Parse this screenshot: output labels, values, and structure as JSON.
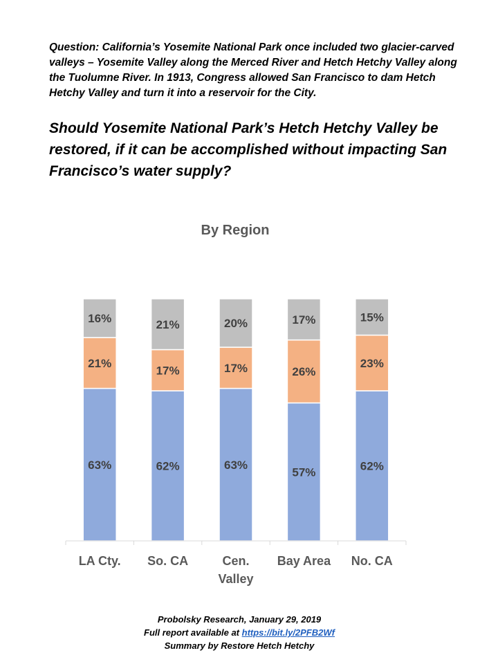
{
  "question_text": "Question: California’s Yosemite National Park once included two glacier-carved valleys – Yosemite Valley along the Merced River and Hetch Hetchy Valley along the Tuolumne River. In 1913, Congress allowed San Francisco to dam Hetch Hetchy Valley and turn it into a reservoir for the City.",
  "headline": "Should Yosemite National Park’s Hetch Hetchy Valley be restored, if it can be accomplished without impacting San Francisco’s water supply?",
  "footer": {
    "line1": "Probolsky Research, January 29, 2019",
    "line2_prefix": "Full report available at",
    "link": "https://bit.ly/2PFB2Wf",
    "line3": "Summary by Restore Hetch Hetchy"
  },
  "chart_data": {
    "type": "bar",
    "stacked": true,
    "title": "By Region",
    "categories": [
      "LA Cty.",
      "So. CA",
      "Cen. Valley",
      "Bay Area",
      "No. CA"
    ],
    "series": [
      {
        "values": [
          63,
          62,
          63,
          57,
          62
        ],
        "color": "#8faadc",
        "labels": [
          "63%",
          "62%",
          "63%",
          "57%",
          "62%"
        ]
      },
      {
        "values": [
          21,
          17,
          17,
          26,
          23
        ],
        "color": "#f4b183",
        "labels": [
          "21%",
          "17%",
          "17%",
          "26%",
          "23%"
        ]
      },
      {
        "values": [
          16,
          21,
          20,
          17,
          15
        ],
        "color": "#bfbfbf",
        "labels": [
          "16%",
          "21%",
          "20%",
          "17%",
          "15%"
        ]
      }
    ],
    "ylim": [
      0,
      100
    ],
    "legend": "none",
    "grid": false
  }
}
